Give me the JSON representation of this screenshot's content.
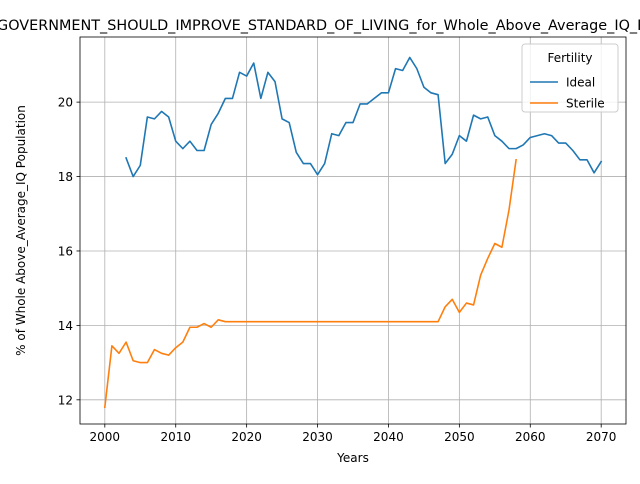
{
  "chart_data": {
    "type": "line",
    "title": "Agree_in_GOVERNMENT_SHOULD_IMPROVE_STANDARD_OF_LIVING_for_Whole_Above_Average_IQ_Population",
    "xlabel": "Years",
    "ylabel": "% of Whole Above_Average_IQ Population",
    "xlim": [
      1996.5,
      2073.5
    ],
    "ylim": [
      11.35,
      21.75
    ],
    "xticks": [
      2000,
      2010,
      2020,
      2030,
      2040,
      2050,
      2060,
      2070
    ],
    "yticks": [
      12,
      14,
      16,
      18,
      20
    ],
    "grid": true,
    "legend": {
      "title": "Fertility",
      "position": "top-right"
    },
    "series": [
      {
        "name": "Ideal",
        "color": "#1f77b4",
        "x": [
          2003,
          2004,
          2005,
          2006,
          2007,
          2008,
          2009,
          2010,
          2011,
          2012,
          2013,
          2014,
          2015,
          2016,
          2017,
          2018,
          2019,
          2020,
          2021,
          2022,
          2023,
          2024,
          2025,
          2026,
          2027,
          2028,
          2029,
          2030,
          2031,
          2032,
          2033,
          2034,
          2035,
          2036,
          2037,
          2038,
          2039,
          2040,
          2041,
          2042,
          2043,
          2044,
          2045,
          2046,
          2047,
          2048,
          2049,
          2050,
          2051,
          2052,
          2053,
          2054,
          2055,
          2056,
          2057,
          2058,
          2059,
          2060,
          2061,
          2062,
          2063,
          2064,
          2065,
          2066,
          2067,
          2068,
          2069,
          2070
        ],
        "y": [
          18.5,
          18.0,
          18.3,
          19.6,
          19.55,
          19.75,
          19.6,
          18.95,
          18.75,
          18.95,
          18.7,
          18.7,
          19.4,
          19.7,
          20.1,
          20.1,
          20.8,
          20.7,
          21.05,
          20.1,
          20.8,
          20.55,
          19.55,
          19.45,
          18.65,
          18.35,
          18.35,
          18.05,
          18.35,
          19.15,
          19.1,
          19.45,
          19.45,
          19.95,
          19.95,
          20.1,
          20.25,
          20.25,
          20.9,
          20.85,
          21.2,
          20.9,
          20.4,
          20.25,
          20.2,
          18.35,
          18.6,
          19.1,
          18.95,
          19.65,
          19.55,
          19.6,
          19.1,
          18.95,
          18.75,
          18.75,
          18.85,
          19.05,
          19.1,
          19.15,
          19.1,
          18.9,
          18.9,
          18.7,
          18.45,
          18.45,
          18.1,
          18.4
        ]
      },
      {
        "name": "Sterile",
        "color": "#ff7f0e",
        "x": [
          2000,
          2001,
          2002,
          2003,
          2004,
          2005,
          2006,
          2007,
          2008,
          2009,
          2010,
          2011,
          2012,
          2013,
          2014,
          2015,
          2016,
          2017,
          2018,
          2019,
          2020,
          2021,
          2022,
          2023,
          2024,
          2025,
          2026,
          2027,
          2028,
          2029,
          2030,
          2031,
          2032,
          2033,
          2034,
          2035,
          2036,
          2037,
          2038,
          2039,
          2040,
          2041,
          2042,
          2043,
          2044,
          2045,
          2046,
          2047,
          2048,
          2049,
          2050,
          2051,
          2052,
          2053,
          2054,
          2055,
          2056,
          2057,
          2058
        ],
        "y": [
          11.8,
          13.45,
          13.25,
          13.55,
          13.05,
          13.0,
          13.0,
          13.35,
          13.25,
          13.2,
          13.4,
          13.55,
          13.95,
          13.95,
          14.05,
          13.95,
          14.15,
          14.1,
          14.1,
          14.1,
          14.1,
          14.1,
          14.1,
          14.1,
          14.1,
          14.1,
          14.1,
          14.1,
          14.1,
          14.1,
          14.1,
          14.1,
          14.1,
          14.1,
          14.1,
          14.1,
          14.1,
          14.1,
          14.1,
          14.1,
          14.1,
          14.1,
          14.1,
          14.1,
          14.1,
          14.1,
          14.1,
          14.1,
          14.5,
          14.7,
          14.35,
          14.6,
          14.55,
          15.35,
          15.8,
          16.2,
          16.1,
          17.1,
          18.45
        ]
      }
    ]
  }
}
